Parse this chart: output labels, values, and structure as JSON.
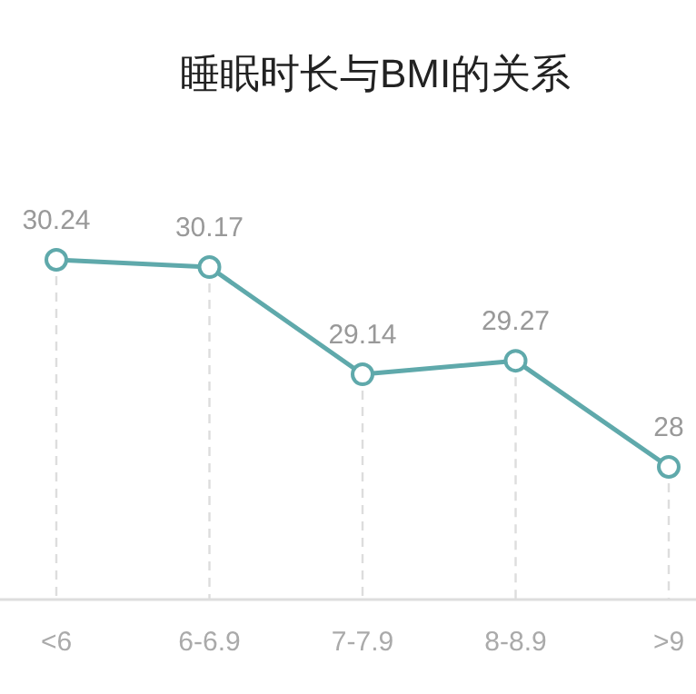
{
  "chart_data": {
    "type": "line",
    "title": "睡眠时长与BMI的关系",
    "categories": [
      "<6",
      "6-6.9",
      "7-7.9",
      "8-8.9",
      ">9"
    ],
    "series": [
      {
        "color": "#5fa9ab",
        "values": [
          30.24,
          30.17,
          29.14,
          29.27,
          28.25
        ],
        "value_labels": [
          "30.24",
          "30.17",
          "29.14",
          "29.27",
          "28"
        ]
      }
    ],
    "marker": "circle",
    "line_style": "solid",
    "grid": "x",
    "tick_labels": "x"
  }
}
